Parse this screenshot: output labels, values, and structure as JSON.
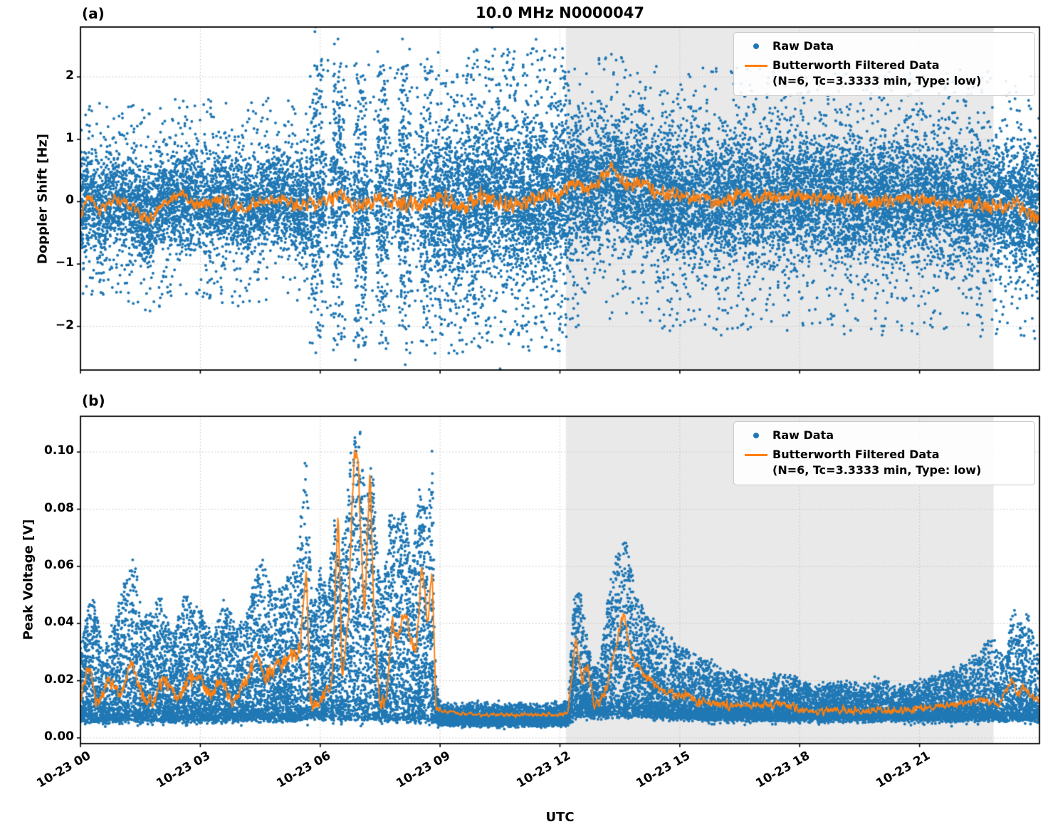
{
  "title": "10.0 MHz N0000047",
  "xlabel": "UTC",
  "panels": {
    "a": {
      "label": "(a)",
      "ylabel": "Doppler Shift [Hz]"
    },
    "b": {
      "label": "(b)",
      "ylabel": "Peak Voltage [V]"
    }
  },
  "legend": {
    "raw": "Raw Data",
    "filtered_line1": "Butterworth Filtered Data",
    "filtered_line2": "(N=6, Tc=3.3333 min, Type: low)"
  },
  "colors": {
    "raw": "#1f77b4",
    "filtered": "#ff7f0e",
    "shade": "#e9e9e9",
    "grid": "#c0c0c0",
    "axis": "#000000",
    "background": "#ffffff"
  },
  "x_axis": {
    "range_hours": [
      0,
      24
    ],
    "tick_hours": [
      0,
      3,
      6,
      9,
      12,
      15,
      18,
      21
    ],
    "tick_labels": [
      "10-23 00",
      "10-23 03",
      "10-23 06",
      "10-23 09",
      "10-23 12",
      "10-23 15",
      "10-23 18",
      "10-23 21"
    ],
    "unit": "hours since 10-23 00:00 UTC"
  },
  "shaded_region_hours": [
    12.15,
    22.85
  ],
  "chart_data": [
    {
      "type": "scatter",
      "name": "doppler_shift",
      "title": "10.0 MHz N0000047",
      "xlabel": "UTC",
      "ylabel": "Doppler Shift [Hz]",
      "ylim": [
        -2.7,
        2.8
      ],
      "yticks": [
        2,
        1,
        0,
        -1,
        -2
      ],
      "ytick_labels": [
        "2",
        "1",
        "0",
        "−1",
        "−2"
      ],
      "grid": true,
      "legend_position": "upper right",
      "shade": [
        12.15,
        22.85
      ],
      "series": [
        {
          "name": "Raw Data",
          "kind": "scatter",
          "color": "#1f77b4",
          "summary": "dense noisy doppler samples centered on the filtered curve, spread varies by interval",
          "segments": [
            {
              "t0": 0.0,
              "t1": 5.7,
              "per_hour": 750,
              "sigma": 0.42,
              "tail_p": 0.05,
              "tail_min": 1.0,
              "tail_max": 1.65,
              "stripes": false
            },
            {
              "t0": 5.7,
              "t1": 8.85,
              "per_hour": 950,
              "sigma": 0.72,
              "tail_p": 0.1,
              "tail_min": 1.4,
              "tail_max": 2.3,
              "stripes": true
            },
            {
              "t0": 8.85,
              "t1": 12.25,
              "per_hour": 1000,
              "sigma": 0.72,
              "tail_p": 0.07,
              "tail_min": 1.5,
              "tail_max": 2.45,
              "stripes": false
            },
            {
              "t0": 12.25,
              "t1": 24.0,
              "per_hour": 850,
              "sigma": 0.55,
              "tail_p": 0.05,
              "tail_min": 1.2,
              "tail_max": 2.15,
              "stripes": false
            }
          ]
        },
        {
          "name": "Butterworth Filtered Data (N=6, Tc=3.3333 min, Type: low)",
          "kind": "line",
          "color": "#ff7f0e",
          "control_t": [
            0,
            0.2,
            0.5,
            0.9,
            1.3,
            1.7,
            2.1,
            2.5,
            3.0,
            3.5,
            4.0,
            4.5,
            5.0,
            5.5,
            6.0,
            6.5,
            7.0,
            7.5,
            8.0,
            8.5,
            9.0,
            9.5,
            10.0,
            10.5,
            11.0,
            11.5,
            12.0,
            12.3,
            12.7,
            13.0,
            13.3,
            13.7,
            14.0,
            14.5,
            15.0,
            15.5,
            16.0,
            16.5,
            17.0,
            17.5,
            18.0,
            19.0,
            20.0,
            21.0,
            22.0,
            23.0,
            23.5,
            24.0
          ],
          "control_v": [
            -0.2,
            0.1,
            -0.15,
            0.05,
            -0.1,
            -0.35,
            0.0,
            0.1,
            -0.05,
            0.05,
            -0.1,
            0.0,
            0.05,
            -0.05,
            0.0,
            0.1,
            -0.1,
            0.05,
            0.0,
            -0.05,
            0.05,
            -0.1,
            0.1,
            0.0,
            -0.05,
            0.1,
            0.1,
            0.3,
            0.2,
            0.35,
            0.55,
            0.25,
            0.3,
            0.15,
            0.1,
            0.05,
            0.0,
            0.1,
            0.05,
            0.1,
            0.1,
            0.05,
            0.0,
            0.05,
            -0.05,
            -0.1,
            -0.05,
            -0.3
          ],
          "noise_amp_t": [
            0,
            5.7,
            8.8,
            12.3,
            14,
            24
          ],
          "noise_amp_v": [
            0.13,
            0.16,
            0.22,
            0.2,
            0.17,
            0.17
          ]
        }
      ]
    },
    {
      "type": "scatter",
      "name": "peak_voltage",
      "xlabel": "UTC",
      "ylabel": "Peak Voltage [V]",
      "ylim": [
        -0.002,
        0.1125
      ],
      "yticks": [
        0.0,
        0.02,
        0.04,
        0.06,
        0.08,
        0.1
      ],
      "ytick_labels": [
        "0.00",
        "0.02",
        "0.04",
        "0.06",
        "0.08",
        "0.10"
      ],
      "grid": true,
      "legend_position": "upper right",
      "shade": [
        12.15,
        22.85
      ],
      "series": [
        {
          "name": "Raw Data",
          "kind": "scatter",
          "color": "#1f77b4",
          "summary": "positive voltage samples between base and spike envelope; large spikes 06:00-09:00 up to 0.11 V, flat ~0.007 V 09:00-12:20, bursts to 0.07 V after 13:00, slow decay then small rise near 23:30",
          "base_t": [
            0,
            5.7,
            8.8,
            9.0,
            12.2,
            12.35,
            14.0,
            16.0,
            24.0
          ],
          "base_v": [
            0.006,
            0.007,
            0.006,
            0.0055,
            0.0055,
            0.008,
            0.008,
            0.007,
            0.007
          ],
          "peak_t": [
            0,
            0.3,
            0.6,
            1.0,
            1.3,
            1.6,
            2.0,
            2.3,
            2.6,
            3.0,
            3.3,
            3.6,
            3.9,
            4.2,
            4.5,
            4.8,
            5.1,
            5.4,
            5.65,
            5.8,
            6.0,
            6.2,
            6.35,
            6.5,
            6.7,
            6.85,
            7.0,
            7.15,
            7.3,
            7.45,
            7.6,
            7.75,
            7.9,
            8.1,
            8.3,
            8.5,
            8.65,
            8.8,
            8.9,
            9.0,
            9.5,
            10.0,
            10.5,
            11.0,
            11.5,
            12.0,
            12.2,
            12.35,
            12.5,
            12.65,
            12.8,
            13.0,
            13.2,
            13.4,
            13.55,
            13.7,
            13.9,
            14.1,
            14.3,
            14.6,
            15.0,
            15.5,
            16.0,
            16.5,
            17.0,
            17.5,
            18.0,
            18.5,
            19.0,
            19.5,
            20.0,
            20.5,
            21.0,
            21.5,
            22.0,
            22.5,
            22.8,
            23.1,
            23.35,
            23.5,
            23.7,
            23.85,
            24.0
          ],
          "peak_v": [
            0.035,
            0.05,
            0.03,
            0.048,
            0.066,
            0.04,
            0.05,
            0.035,
            0.05,
            0.045,
            0.035,
            0.05,
            0.038,
            0.045,
            0.065,
            0.05,
            0.055,
            0.06,
            0.1,
            0.045,
            0.06,
            0.05,
            0.08,
            0.06,
            0.095,
            0.11,
            0.11,
            0.08,
            0.1,
            0.06,
            0.055,
            0.08,
            0.075,
            0.08,
            0.06,
            0.09,
            0.08,
            0.101,
            0.02,
            0.012,
            0.011,
            0.012,
            0.011,
            0.012,
            0.011,
            0.012,
            0.013,
            0.05,
            0.052,
            0.04,
            0.025,
            0.025,
            0.05,
            0.065,
            0.07,
            0.068,
            0.05,
            0.045,
            0.04,
            0.037,
            0.032,
            0.028,
            0.025,
            0.022,
            0.02,
            0.022,
            0.02,
            0.018,
            0.02,
            0.018,
            0.02,
            0.018,
            0.02,
            0.022,
            0.025,
            0.03,
            0.035,
            0.03,
            0.046,
            0.04,
            0.045,
            0.035,
            0.03
          ],
          "segments": [
            {
              "t0": 0.0,
              "t1": 5.7,
              "per_hour": 950,
              "expo": 2.0
            },
            {
              "t0": 5.7,
              "t1": 8.85,
              "per_hour": 1000,
              "expo": 1.6
            },
            {
              "t0": 8.85,
              "t1": 12.25,
              "per_hour": 900,
              "expo": 3.0
            },
            {
              "t0": 12.25,
              "t1": 14.5,
              "per_hour": 950,
              "expo": 2.0
            },
            {
              "t0": 14.5,
              "t1": 24.0,
              "per_hour": 850,
              "expo": 2.4
            }
          ]
        },
        {
          "name": "Butterworth Filtered Data (N=6, Tc=3.3333 min, Type: low)",
          "kind": "line",
          "color": "#ff7f0e",
          "control_t": [
            0,
            0.2,
            0.4,
            0.7,
            1.0,
            1.3,
            1.5,
            1.8,
            2.1,
            2.4,
            2.7,
            3.0,
            3.2,
            3.5,
            3.8,
            4.1,
            4.4,
            4.6,
            4.9,
            5.2,
            5.5,
            5.65,
            5.75,
            5.9,
            6.1,
            6.3,
            6.45,
            6.55,
            6.7,
            6.85,
            6.95,
            7.1,
            7.25,
            7.35,
            7.5,
            7.65,
            7.8,
            7.95,
            8.1,
            8.25,
            8.4,
            8.55,
            8.7,
            8.8,
            8.9,
            9.2,
            10.0,
            11.0,
            12.0,
            12.2,
            12.4,
            12.55,
            12.7,
            12.85,
            13.0,
            13.2,
            13.45,
            13.6,
            13.75,
            13.9,
            14.1,
            14.4,
            14.7,
            15.0,
            15.5,
            16.0,
            16.5,
            17.0,
            17.5,
            18.0,
            18.5,
            19.0,
            19.5,
            20.0,
            20.5,
            21.0,
            21.5,
            22.0,
            22.5,
            23.0,
            23.3,
            23.45,
            23.6,
            23.8,
            24.0
          ],
          "control_v": [
            0.013,
            0.025,
            0.012,
            0.02,
            0.015,
            0.028,
            0.015,
            0.012,
            0.022,
            0.014,
            0.02,
            0.022,
            0.014,
            0.02,
            0.013,
            0.018,
            0.03,
            0.022,
            0.025,
            0.028,
            0.03,
            0.06,
            0.012,
            0.012,
            0.015,
            0.02,
            0.08,
            0.02,
            0.04,
            0.1,
            0.095,
            0.04,
            0.095,
            0.04,
            0.012,
            0.013,
            0.04,
            0.035,
            0.045,
            0.035,
            0.03,
            0.06,
            0.04,
            0.06,
            0.01,
            0.009,
            0.008,
            0.008,
            0.008,
            0.009,
            0.035,
            0.02,
            0.025,
            0.012,
            0.012,
            0.02,
            0.035,
            0.045,
            0.03,
            0.025,
            0.022,
            0.018,
            0.016,
            0.015,
            0.013,
            0.012,
            0.011,
            0.011,
            0.012,
            0.01,
            0.009,
            0.01,
            0.009,
            0.01,
            0.009,
            0.01,
            0.011,
            0.012,
            0.013,
            0.012,
            0.02,
            0.015,
            0.018,
            0.014,
            0.013
          ],
          "noise_amp_t": [
            0,
            5.7,
            8.8,
            9.0,
            12.2,
            12.4,
            14.5,
            24
          ],
          "noise_amp_v": [
            0.004,
            0.004,
            0.004,
            0.001,
            0.001,
            0.003,
            0.0025,
            0.0018
          ]
        }
      ]
    }
  ]
}
